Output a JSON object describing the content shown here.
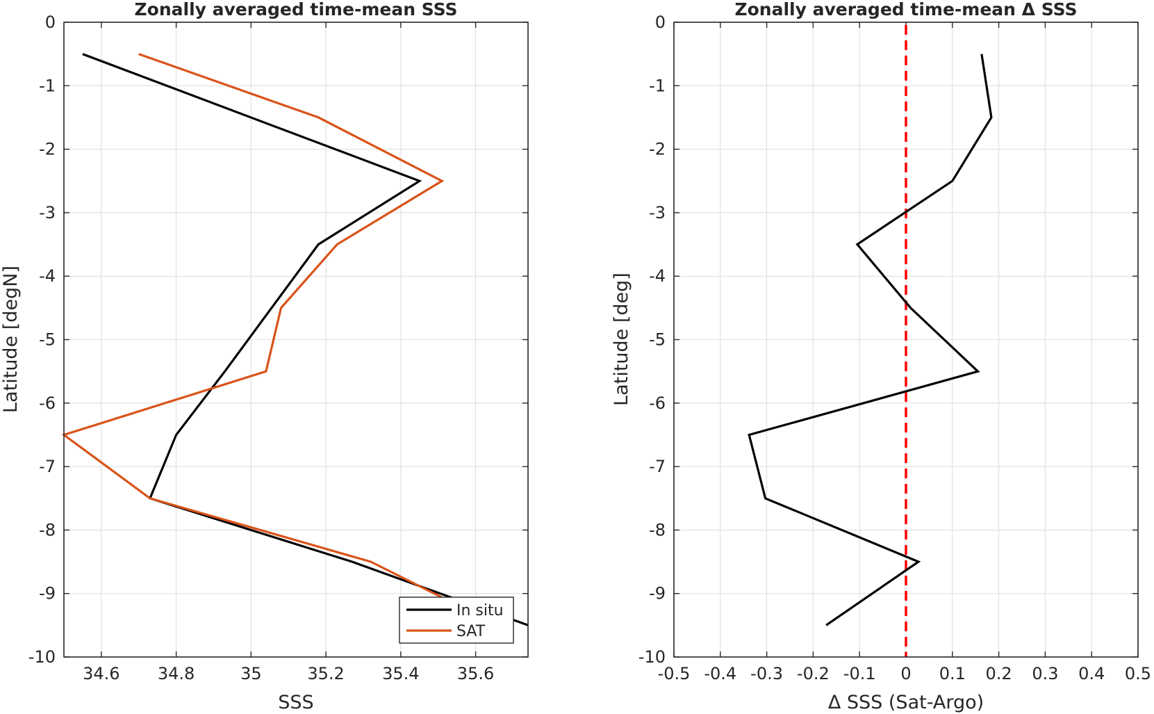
{
  "chart_data": [
    {
      "type": "line",
      "title": "Zonally averaged time-mean SSS",
      "xlabel": "SSS",
      "ylabel": "Latitude [degN]",
      "xlim": [
        34.5,
        35.74
      ],
      "ylim": [
        -10,
        0
      ],
      "xticks": [
        34.6,
        34.8,
        35,
        35.2,
        35.4,
        35.6
      ],
      "xtick_labels": [
        "34.6",
        "34.8",
        "35",
        "35.2",
        "35.4",
        "35.6"
      ],
      "yticks": [
        0,
        -1,
        -2,
        -3,
        -4,
        -5,
        -6,
        -7,
        -8,
        -9,
        -10
      ],
      "ytick_labels": [
        "0",
        "-1",
        "-2",
        "-3",
        "-4",
        "-5",
        "-6",
        "-7",
        "-8",
        "-9",
        "-10"
      ],
      "grid": true,
      "legend_position": "bottom-right",
      "series": [
        {
          "name": "In situ",
          "color": "#000000",
          "x": [
            34.55,
            35.45,
            35.18,
            34.93,
            34.8,
            34.73,
            35.27,
            35.74
          ],
          "y": [
            -0.5,
            -2.5,
            -3.5,
            -5.5,
            -6.5,
            -7.5,
            -8.5,
            -9.5
          ]
        },
        {
          "name": "SAT",
          "color": "#d95319",
          "x": [
            34.7,
            35.18,
            35.51,
            35.23,
            35.08,
            35.04,
            34.5,
            34.73,
            35.32,
            35.53
          ],
          "y": [
            -0.5,
            -1.5,
            -2.5,
            -3.5,
            -4.5,
            -5.5,
            -6.5,
            -7.5,
            -8.5,
            -9.12
          ]
        }
      ]
    },
    {
      "type": "line",
      "title": "Zonally averaged time-mean Δ SSS",
      "xlabel": "Δ SSS (Sat-Argo)",
      "ylabel": "Latitude [deg]",
      "xlim": [
        -0.5,
        0.5
      ],
      "ylim": [
        -10,
        0
      ],
      "xticks": [
        -0.5,
        -0.4,
        -0.3,
        -0.2,
        -0.1,
        0,
        0.1,
        0.2,
        0.3,
        0.4,
        0.5
      ],
      "xtick_labels": [
        "-0.5",
        "-0.4",
        "-0.3",
        "-0.2",
        "-0.1",
        "0",
        "0.1",
        "0.2",
        "0.3",
        "0.4",
        "0.5"
      ],
      "yticks": [
        0,
        -1,
        -2,
        -3,
        -4,
        -5,
        -6,
        -7,
        -8,
        -9,
        -10
      ],
      "ytick_labels": [
        "0",
        "-1",
        "-2",
        "-3",
        "-4",
        "-5",
        "-6",
        "-7",
        "-8",
        "-9",
        "-10"
      ],
      "grid": true,
      "series": [
        {
          "color": "#000000",
          "x": [
            0.163,
            0.184,
            0.1,
            -0.105,
            0.01,
            0.155,
            -0.338,
            -0.303,
            0.027,
            -0.172
          ],
          "y": [
            -0.5,
            -1.5,
            -2.5,
            -3.5,
            -4.5,
            -5.5,
            -6.5,
            -7.5,
            -8.5,
            -9.5
          ]
        }
      ],
      "reference_line": {
        "x": 0,
        "color": "#ff0000",
        "style": "dashed"
      }
    }
  ]
}
